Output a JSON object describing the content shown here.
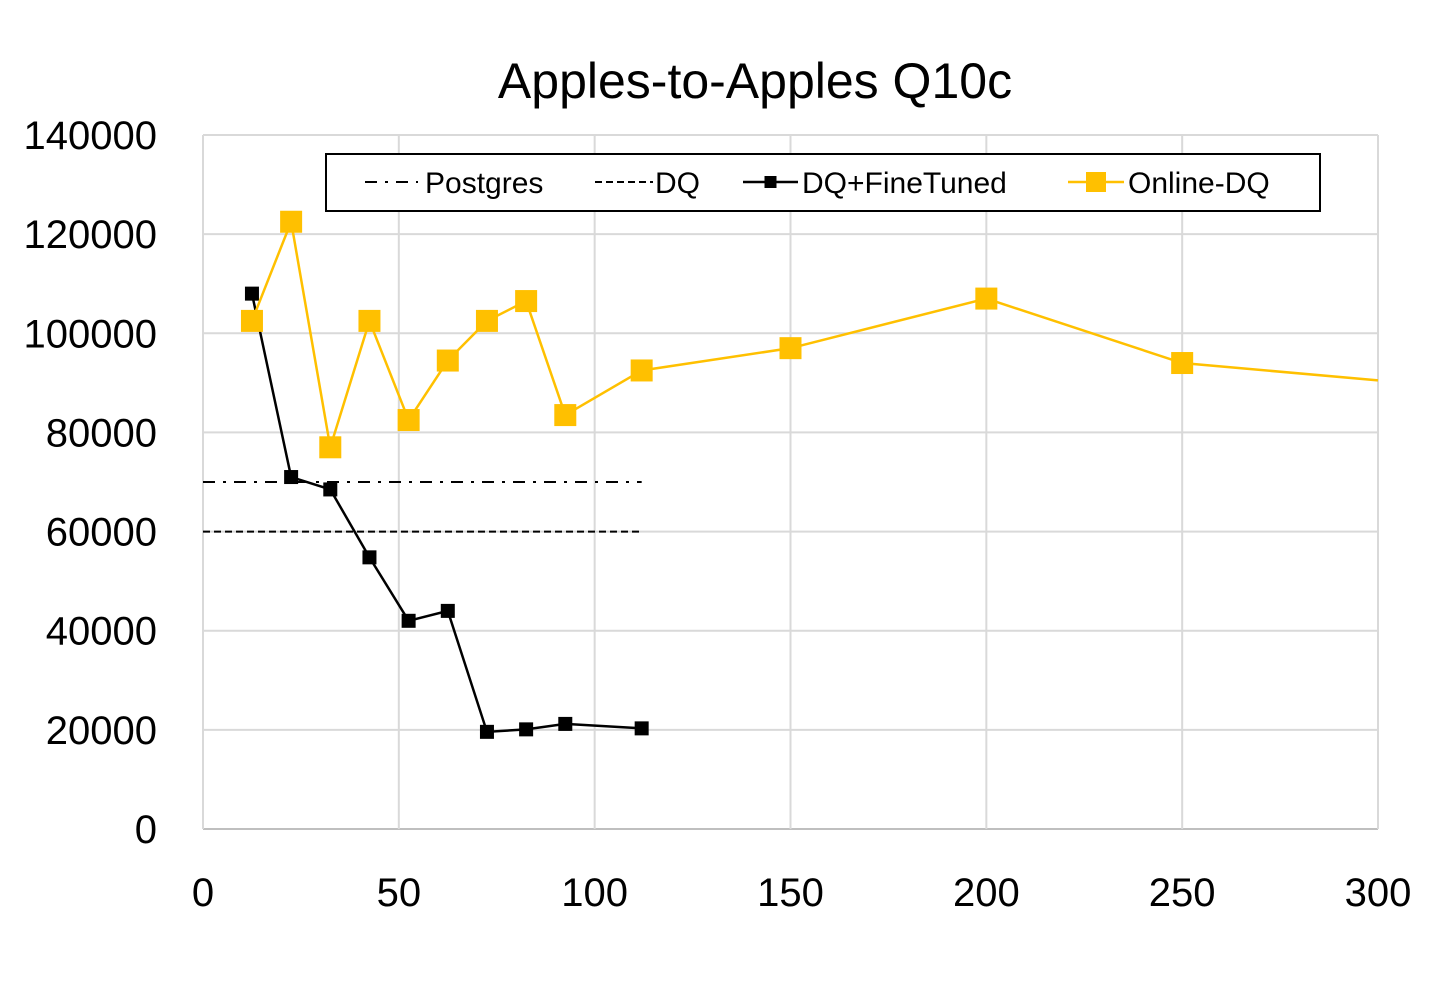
{
  "chart_data": {
    "type": "line",
    "title": "Apples-to-Apples Q10c",
    "xlabel": "",
    "ylabel": "",
    "xlim": [
      0,
      300
    ],
    "ylim": [
      0,
      140000
    ],
    "x_ticks": [
      "0",
      "50",
      "100",
      "150",
      "200",
      "250",
      "300"
    ],
    "y_ticks": [
      "0",
      "20000",
      "40000",
      "60000",
      "80000",
      "100000",
      "120000",
      "140000"
    ],
    "grid": true,
    "legend_position": "top",
    "series": [
      {
        "name": "Postgres",
        "style": "dash-dot",
        "color": "#000000",
        "points": [
          [
            0,
            70000
          ],
          [
            112,
            70000
          ]
        ]
      },
      {
        "name": "DQ",
        "style": "dashed",
        "color": "#000000",
        "points": [
          [
            0,
            60000
          ],
          [
            112,
            60000
          ]
        ]
      },
      {
        "name": "DQ+FineTuned",
        "style": "solid-square-markers",
        "color": "#000000",
        "points": [
          [
            12.5,
            108000
          ],
          [
            22.5,
            71000
          ],
          [
            32.5,
            68500
          ],
          [
            42.5,
            54800
          ],
          [
            52.5,
            42000
          ],
          [
            62.5,
            44000
          ],
          [
            72.5,
            19600
          ],
          [
            82.5,
            20100
          ],
          [
            92.5,
            21200
          ],
          [
            112,
            20300
          ]
        ]
      },
      {
        "name": "Online-DQ",
        "style": "solid-square-markers",
        "color": "#FFC000",
        "points": [
          [
            12.5,
            102500
          ],
          [
            22.5,
            122500
          ],
          [
            32.5,
            77000
          ],
          [
            42.5,
            102500
          ],
          [
            52.5,
            82500
          ],
          [
            62.5,
            94500
          ],
          [
            72.5,
            102500
          ],
          [
            82.5,
            106500
          ],
          [
            92.5,
            83500
          ],
          [
            112,
            92500
          ],
          [
            150,
            97000
          ],
          [
            200,
            107000
          ],
          [
            250,
            94000
          ],
          [
            300,
            90500
          ]
        ]
      }
    ]
  }
}
